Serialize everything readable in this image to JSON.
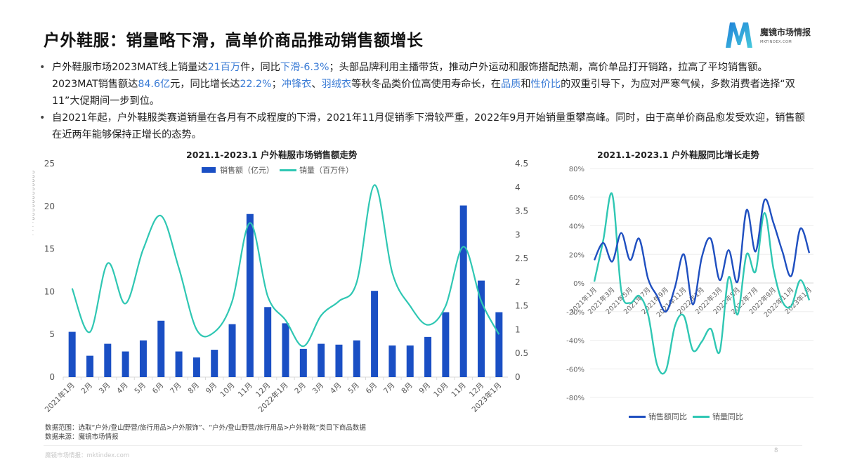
{
  "title": "户外鞋服：销量略下滑，高单价商品推动销售额增长",
  "logo": {
    "name_cn": "魔镜市场情报",
    "name_en": "MKTINDEX.COM",
    "colors": [
      "#1e9be0",
      "#3fc1d9"
    ]
  },
  "bullets": [
    {
      "segments": [
        {
          "t": "户外鞋服市场2023MAT线上销量达",
          "hl": false
        },
        {
          "t": "21百万",
          "hl": true
        },
        {
          "t": "件，同比",
          "hl": false
        },
        {
          "t": "下滑-6.3%",
          "hl": true
        },
        {
          "t": "；头部品牌利用主播带货，推动户外运动和服饰搭配热潮，高价单品打开销路，拉高了平均销售额。2023MAT销售额达",
          "hl": false
        },
        {
          "t": "84.6亿",
          "hl": true
        },
        {
          "t": "元，同比增长达",
          "hl": false
        },
        {
          "t": "22.2%",
          "hl": true
        },
        {
          "t": "；",
          "hl": false
        },
        {
          "t": "冲锋衣",
          "hl": true
        },
        {
          "t": "、",
          "hl": false
        },
        {
          "t": "羽绒衣",
          "hl": true
        },
        {
          "t": "等秋冬品类价位高使用寿命长，在",
          "hl": false
        },
        {
          "t": "品质",
          "hl": true
        },
        {
          "t": "和",
          "hl": false
        },
        {
          "t": "性价比",
          "hl": true
        },
        {
          "t": "的双重引导下，为应对严寒气候，多数消费者选择“双11”大促期间一步到位。",
          "hl": false
        }
      ]
    },
    {
      "segments": [
        {
          "t": "自2021年起，户外鞋服类赛道销量在各月有不成程度的下滑，2021年11月促销季下滑较严重，2022年9月开始销量重攀高峰。同时，由于高单价商品愈发受欢迎，销售额在近两年能够保持正增长的态势。",
          "hl": false
        }
      ]
    }
  ],
  "chart_data": [
    {
      "type": "bar",
      "title": "2021.1-2023.1 户外鞋服市场销售额走势",
      "categories": [
        "2021年1月",
        "2月",
        "3月",
        "4月",
        "5月",
        "6月",
        "7月",
        "8月",
        "9月",
        "10月",
        "11月",
        "12月",
        "2022年1月",
        "2月",
        "3月",
        "4月",
        "5月",
        "6月",
        "7月",
        "8月",
        "9月",
        "10月",
        "11月",
        "12月",
        "2023年1月"
      ],
      "series": [
        {
          "name": "销售额（亿元）",
          "type": "bar",
          "axis": "left",
          "color": "#1a4fc4",
          "values": [
            5.3,
            2.5,
            3.9,
            3.0,
            4.3,
            6.6,
            3.0,
            2.3,
            3.2,
            6.2,
            19.1,
            8.2,
            6.3,
            3.3,
            3.9,
            3.8,
            4.3,
            10.1,
            3.7,
            3.7,
            4.7,
            7.6,
            20.1,
            11.3,
            7.6
          ]
        },
        {
          "name": "销量（百万件）",
          "type": "line",
          "axis": "right",
          "color": "#2fc7b3",
          "values": [
            1.87,
            0.95,
            2.4,
            1.55,
            2.7,
            3.4,
            2.3,
            1.0,
            0.95,
            1.6,
            3.25,
            1.7,
            1.2,
            0.65,
            1.3,
            1.6,
            2.0,
            4.05,
            2.2,
            1.5,
            1.1,
            1.5,
            2.75,
            1.6,
            0.9
          ]
        }
      ],
      "yleft": {
        "ticks": [
          "0",
          "5",
          "10",
          "15",
          "20",
          "25"
        ],
        "lim": [
          0,
          25
        ]
      },
      "yright": {
        "ticks": [
          "0",
          "0.5",
          "1",
          "1.5",
          "2",
          "2.5",
          "3",
          "3.5",
          "4",
          "4.5"
        ],
        "lim": [
          0,
          4.5
        ]
      },
      "legend_position": "top",
      "grid": false
    },
    {
      "type": "line",
      "title": "2021.1-2023.1 户外鞋服同比增长走势",
      "x": [
        "2021年1月",
        "2021年2月",
        "2021年3月",
        "2021年4月",
        "2021年5月",
        "2021年6月",
        "2021年7月",
        "2021年8月",
        "2021年9月",
        "2021年10月",
        "2021年11月",
        "2021年12月",
        "2022年1月",
        "2022年2月",
        "2022年3月",
        "2022年4月",
        "2022年5月",
        "2022年6月",
        "2022年7月",
        "2022年8月",
        "2022年9月",
        "2022年10月",
        "2022年11月",
        "2022年12月",
        "2023年1月"
      ],
      "xtick_labels": [
        "2021年1月",
        "2021年3月",
        "2021年5月",
        "2021年7月",
        "2021年9月",
        "2021年11月",
        "2022年1月",
        "2022年3月",
        "2022年5月",
        "2022年7月",
        "2022年9月",
        "2022年11月",
        "2023年1月"
      ],
      "series": [
        {
          "name": "销售额同比",
          "color": "#1f4fc0",
          "values": [
            16,
            28,
            15,
            35,
            16,
            31,
            3,
            -9,
            -20,
            -3,
            20,
            -15,
            18,
            31,
            2,
            23,
            1,
            51,
            22,
            58,
            42,
            22,
            5,
            38,
            21
          ]
        },
        {
          "name": "销量同比",
          "color": "#2fc7b3",
          "values": [
            1,
            30,
            62,
            -5,
            -14,
            -9,
            -22,
            -57,
            -61,
            -30,
            -23,
            -47,
            -41,
            -32,
            -48,
            4,
            -22,
            20,
            8,
            49,
            10,
            -13,
            -16,
            2,
            -12
          ]
        }
      ],
      "ylabel_ticks": [
        "80%",
        "60%",
        "40%",
        "20%",
        "0%",
        "-20%",
        "-40%",
        "-60%",
        "-80%"
      ],
      "ylim": [
        -80,
        80
      ],
      "legend_position": "bottom",
      "grid": true
    }
  ],
  "notes": {
    "scope": "数据范围：选取“户外/登山野营/旅行用品>户外服饰”、“户外/登山野营/旅行用品>户外鞋靴”类目下商品数据",
    "source": "数据来源：魔镜市场情报"
  },
  "footer": "魔镜市场情报：mktindex.com",
  "page_number": "8"
}
